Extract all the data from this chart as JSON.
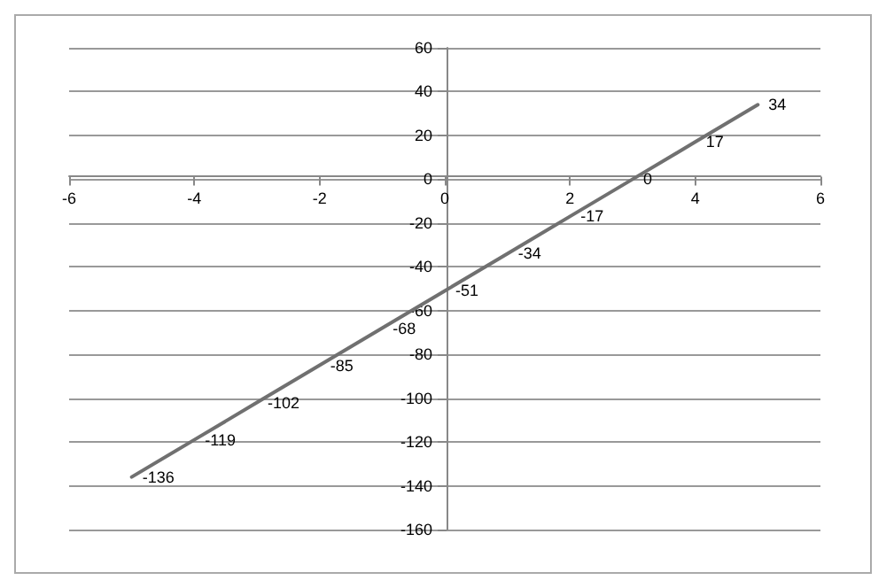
{
  "chart_data": {
    "type": "line",
    "x": [
      -5,
      -4,
      -3,
      -2,
      -1,
      0,
      1,
      2,
      3,
      4,
      5
    ],
    "series": [
      {
        "color": "#707070",
        "values": [
          -136,
          -119,
          -102,
          -85,
          -68,
          -51,
          -34,
          -17,
          0,
          17,
          34
        ]
      }
    ],
    "xlim": [
      -6,
      6
    ],
    "xticks": [
      -6,
      -4,
      -2,
      0,
      2,
      4,
      6
    ],
    "ylim": [
      -160,
      60
    ],
    "yticks": [
      -160,
      -140,
      -120,
      -100,
      -80,
      -60,
      -40,
      -20,
      0,
      20,
      40,
      60
    ],
    "grid": "y",
    "marker": "none",
    "line_style": "solid",
    "data_labels": true
  }
}
